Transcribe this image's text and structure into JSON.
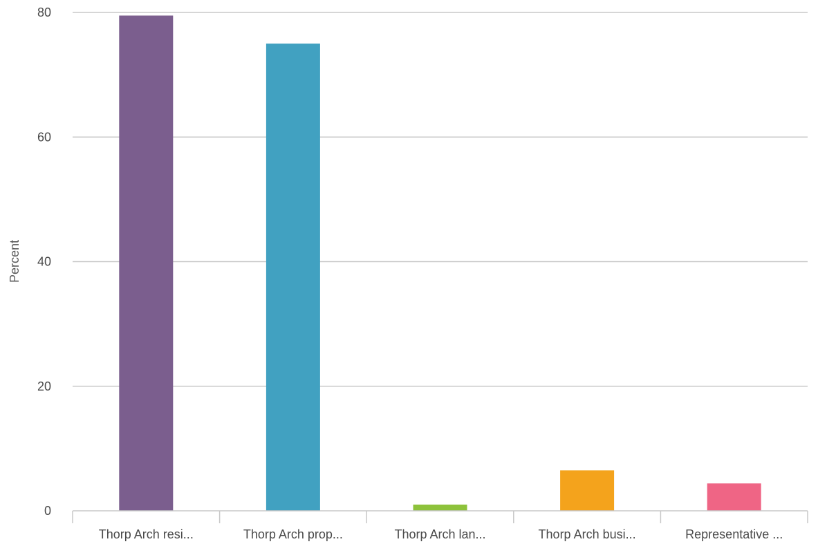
{
  "chart_data": {
    "type": "bar",
    "title": "",
    "xlabel": "",
    "ylabel": "Percent",
    "ylim": [
      0,
      80
    ],
    "yticks": [
      0,
      20,
      40,
      60,
      80
    ],
    "grid": true,
    "legend": "none",
    "categories": [
      "Thorp Arch resi...",
      "Thorp Arch prop...",
      "Thorp Arch lan...",
      "Thorp Arch busi...",
      "Representative ..."
    ],
    "values": [
      79.5,
      75.0,
      1.0,
      6.5,
      4.4
    ],
    "colors": [
      "#7b5e8e",
      "#41a1c1",
      "#8dc23b",
      "#f4a31c",
      "#ef6585"
    ],
    "gridline_color": "#c8c8c8",
    "axis_color": "#c8c8c8"
  }
}
